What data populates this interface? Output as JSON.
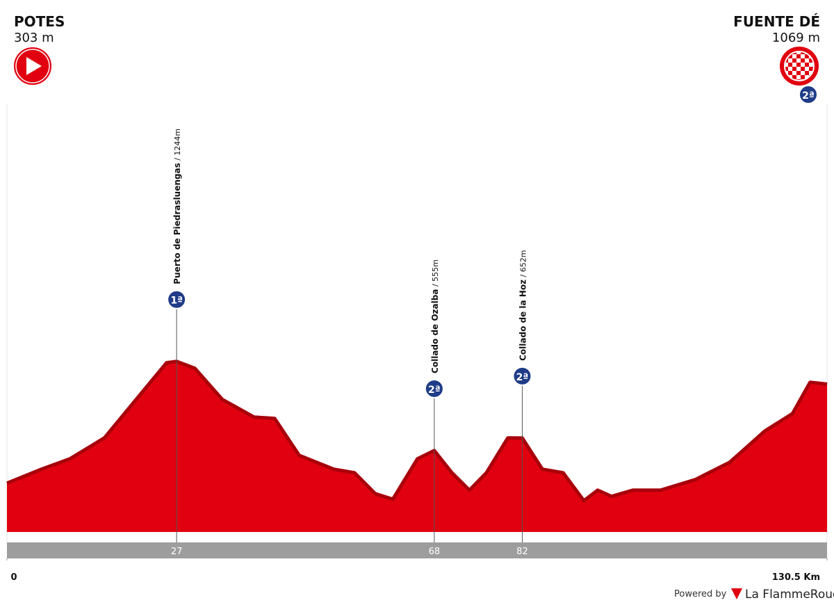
{
  "chart_data": {
    "type": "area",
    "color": "#e1000f",
    "shade": "#a8000b",
    "start": {
      "name": "POTES",
      "elevation_label": "303 m"
    },
    "finish": {
      "name": "FUENTE DÉ",
      "elevation_label": "1069 m",
      "category": "2ª"
    },
    "x": [
      0,
      5.5,
      10,
      15.5,
      21,
      25.4,
      27,
      29.9,
      34.3,
      39.3,
      42.6,
      46.5,
      52,
      55.3,
      58.6,
      61.4,
      65.3,
      68,
      70.8,
      73.6,
      76.3,
      79.7,
      82,
      85.2,
      88.5,
      91.8,
      94,
      96.2,
      99.6,
      104,
      109.5,
      115,
      120.6,
      125,
      127.8,
      130.5
    ],
    "values": [
      303,
      411,
      491,
      653,
      976,
      1234,
      1244,
      1191,
      949,
      814,
      803,
      518,
      411,
      384,
      222,
      179,
      491,
      555,
      384,
      249,
      384,
      653,
      652,
      411,
      384,
      168,
      249,
      201,
      249,
      249,
      330,
      464,
      706,
      841,
      1083,
      1069
    ],
    "xlim": [
      0,
      130.5
    ],
    "ylim": [
      -74,
      3150
    ],
    "xticks": [
      0,
      {
        "value": 130.5,
        "label": "130.5 Km"
      }
    ],
    "climbs": [
      {
        "name": "Puerto de Piedrasluengas",
        "altitude_label": " / 1244m",
        "elevation": 1244,
        "km": 27,
        "category": "1ª"
      },
      {
        "name": "Collado de Ozalba",
        "altitude_label": " / 555m",
        "elevation": 555,
        "km": 68,
        "category": "2ª"
      },
      {
        "name": "Collado de la Hoz",
        "altitude_label": " / 652m",
        "elevation": 652,
        "km": 82,
        "category": "2ª"
      }
    ],
    "footer": {
      "powered": "Powered by",
      "brand": "La FlammeRouge"
    }
  }
}
